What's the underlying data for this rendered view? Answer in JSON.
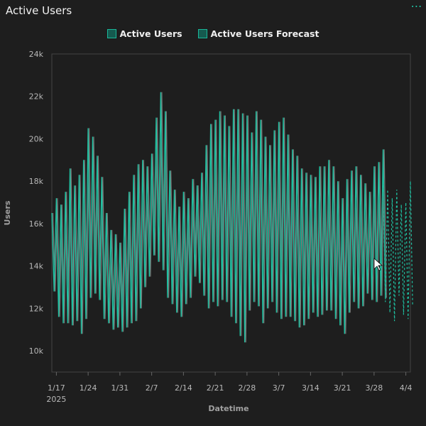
{
  "header": {
    "title": "Active Users",
    "menu_icon": "more-dots-icon"
  },
  "chart_data": {
    "type": "line",
    "title": "Active Users",
    "xlabel": "Datetime",
    "ylabel": "Users",
    "ylim": [
      9000,
      24000
    ],
    "xlim": [
      "2025-01-16",
      "2025-04-05"
    ],
    "y_ticks": [
      "10k",
      "12k",
      "14k",
      "16k",
      "18k",
      "20k",
      "22k",
      "24k"
    ],
    "x_ticks": [
      {
        "date": "2025-01-17",
        "label": "1/17",
        "sublabel": "2025"
      },
      {
        "date": "2025-01-24",
        "label": "1/24"
      },
      {
        "date": "2025-01-31",
        "label": "1/31"
      },
      {
        "date": "2025-02-07",
        "label": "2/7"
      },
      {
        "date": "2025-02-14",
        "label": "2/14"
      },
      {
        "date": "2025-02-21",
        "label": "2/21"
      },
      {
        "date": "2025-02-28",
        "label": "2/28"
      },
      {
        "date": "2025-03-07",
        "label": "3/7"
      },
      {
        "date": "2025-03-14",
        "label": "3/14"
      },
      {
        "date": "2025-03-21",
        "label": "3/21"
      },
      {
        "date": "2025-03-28",
        "label": "3/28"
      },
      {
        "date": "2025-04-04",
        "label": "4/4"
      }
    ],
    "grid": false,
    "legend_placement": "top-center",
    "series": [
      {
        "name": "Active Users",
        "color": "#1fbfa0",
        "points_per_day": 2,
        "start": "2025-01-16",
        "y_high": [
          16500,
          17200,
          16900,
          17500,
          18600,
          17800,
          18300,
          19000,
          20500,
          20100,
          19200,
          18200,
          16500,
          15700,
          15500,
          15100,
          16700,
          17500,
          18300,
          18800,
          19000,
          18700,
          19300,
          21000,
          22200,
          21300,
          18500,
          17600,
          16800,
          17500,
          17200,
          18100,
          17800,
          18400,
          19700,
          20700,
          20900,
          21300,
          21100,
          20600,
          21400,
          21400,
          21200,
          21100,
          20300,
          21300,
          20900,
          20100,
          19700,
          20400,
          20800,
          21000,
          20200,
          19500,
          19200,
          18600,
          18400,
          18300,
          18200,
          18700,
          18700,
          19000,
          18700,
          18000,
          17200,
          18100,
          18500,
          18700,
          18300,
          17900,
          17500,
          18700,
          18900,
          19500
        ],
        "y_low": [
          12800,
          11600,
          11300,
          11300,
          11200,
          11400,
          10800,
          11500,
          12500,
          12700,
          12400,
          11500,
          11300,
          11000,
          11100,
          10900,
          11100,
          11300,
          11400,
          12000,
          13000,
          13500,
          14500,
          14200,
          13800,
          12500,
          12200,
          11800,
          11600,
          12200,
          12500,
          13500,
          13200,
          12600,
          12000,
          12300,
          12100,
          12400,
          12300,
          11600,
          11300,
          10700,
          10400,
          11900,
          12300,
          12100,
          11300,
          12000,
          12300,
          11800,
          11500,
          11600,
          11600,
          11400,
          11100,
          11200,
          11500,
          11800,
          11600,
          11700,
          11900,
          11900,
          11500,
          11200,
          10800,
          11800,
          12300,
          12000,
          12100,
          12700,
          12400,
          12300,
          12600,
          12500
        ]
      },
      {
        "name": "Active Users Forecast",
        "color": "#1fbfa0",
        "points_per_day": 2,
        "start": "2025-03-30",
        "y_high": [
          18400,
          17600,
          17200,
          17600,
          16900,
          17000,
          18000
        ],
        "y_low": [
          12300,
          11800,
          11400,
          12600,
          11700,
          11500,
          12100
        ]
      }
    ]
  },
  "cursor_icon": "mouse-pointer-icon"
}
